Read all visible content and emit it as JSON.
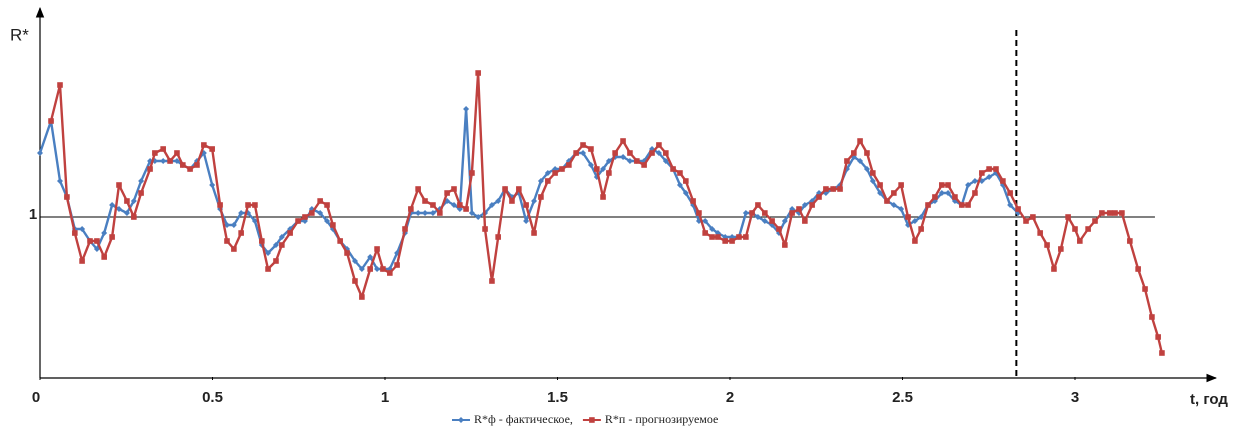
{
  "chart_data": {
    "type": "line",
    "y_label": "R*",
    "x_label": "t, год",
    "xlim": [
      0,
      3.38
    ],
    "ylim": [
      0.6,
      1.5
    ],
    "xticks": [
      0,
      0.5,
      1,
      1.5,
      2,
      2.5,
      3
    ],
    "yticks": [
      1
    ],
    "grid": true,
    "forecast_start": 2.83,
    "legend": "bottom",
    "x": [
      0,
      0.032,
      0.058,
      0.078,
      0.101,
      0.122,
      0.145,
      0.165,
      0.186,
      0.209,
      0.229,
      0.252,
      0.272,
      0.293,
      0.319,
      0.333,
      0.357,
      0.377,
      0.397,
      0.414,
      0.435,
      0.455,
      0.475,
      0.499,
      0.522,
      0.542,
      0.562,
      0.583,
      0.603,
      0.623,
      0.643,
      0.661,
      0.684,
      0.701,
      0.725,
      0.748,
      0.768,
      0.788,
      0.812,
      0.832,
      0.849,
      0.87,
      0.89,
      0.913,
      0.933,
      0.957,
      0.977,
      0.994,
      1.014,
      1.035,
      1.058,
      1.075,
      1.096,
      1.116,
      1.139,
      1.159,
      1.18,
      1.2,
      1.217,
      1.235,
      1.252,
      1.27,
      1.29,
      1.31,
      1.328,
      1.348,
      1.368,
      1.388,
      1.409,
      1.432,
      1.452,
      1.472,
      1.493,
      1.513,
      1.533,
      1.554,
      1.574,
      1.597,
      1.614,
      1.632,
      1.649,
      1.667,
      1.69,
      1.71,
      1.73,
      1.751,
      1.774,
      1.794,
      1.814,
      1.835,
      1.855,
      1.872,
      1.893,
      1.91,
      1.928,
      1.948,
      1.965,
      1.986,
      2.006,
      2.026,
      2.046,
      2.064,
      2.081,
      2.101,
      2.122,
      2.142,
      2.159,
      2.18,
      2.2,
      2.217,
      2.238,
      2.258,
      2.278,
      2.299,
      2.319,
      2.339,
      2.359,
      2.377,
      2.397,
      2.414,
      2.435,
      2.455,
      2.475,
      2.496,
      2.516,
      2.536,
      2.554,
      2.574,
      2.594,
      2.614,
      2.632,
      2.652,
      2.672,
      2.69,
      2.71,
      2.73,
      2.751,
      2.771,
      2.791,
      2.812,
      2.835,
      2.858,
      2.878,
      2.899,
      2.919,
      2.939,
      2.959,
      2.98,
      3.0,
      3.014,
      3.038,
      3.058,
      3.078,
      3.101,
      3.116,
      3.136,
      3.159,
      3.183,
      3.203,
      3.223,
      3.241,
      3.252
    ],
    "series": [
      {
        "name": "R*ф - фактическое,",
        "color": "#4a7fc1",
        "marker": "diamond",
        "values": [
          1.16,
          1.24,
          1.09,
          1.05,
          0.97,
          0.97,
          0.94,
          0.92,
          0.96,
          1.03,
          1.02,
          1.01,
          1.04,
          1.09,
          1.14,
          1.14,
          1.14,
          1.14,
          1.14,
          1.13,
          1.12,
          1.14,
          1.16,
          1.08,
          1.02,
          0.98,
          0.98,
          1.01,
          1.01,
          0.99,
          0.93,
          0.91,
          0.93,
          0.95,
          0.97,
          0.99,
          0.99,
          1.02,
          1.01,
          0.99,
          0.97,
          0.94,
          0.92,
          0.89,
          0.87,
          0.9,
          0.87,
          0.87,
          0.87,
          0.91,
          0.96,
          1.01,
          1.01,
          1.01,
          1.01,
          1.02,
          1.04,
          1.03,
          1.02,
          1.27,
          1.01,
          1.0,
          1.01,
          1.03,
          1.04,
          1.07,
          1.05,
          1.06,
          0.99,
          1.04,
          1.09,
          1.11,
          1.12,
          1.12,
          1.14,
          1.16,
          1.16,
          1.13,
          1.1,
          1.12,
          1.14,
          1.15,
          1.15,
          1.14,
          1.14,
          1.14,
          1.17,
          1.16,
          1.14,
          1.12,
          1.08,
          1.06,
          1.03,
          0.99,
          0.99,
          0.97,
          0.96,
          0.95,
          0.95,
          0.95,
          1.01,
          1.01,
          1.0,
          0.99,
          0.98,
          0.96,
          0.99,
          1.02,
          1.01,
          1.03,
          1.04,
          1.06,
          1.06,
          1.07,
          1.08,
          1.12,
          1.15,
          1.14,
          1.12,
          1.09,
          1.06,
          1.04,
          1.03,
          1.02,
          0.98,
          0.99,
          1.0,
          1.03,
          1.04,
          1.06,
          1.06,
          1.04,
          1.03,
          1.08,
          1.09,
          1.09,
          1.1,
          1.11,
          1.08,
          1.03,
          1.01,
          null,
          null,
          null,
          null,
          null,
          null,
          null,
          null,
          null,
          null,
          null,
          null,
          null,
          null,
          null,
          null,
          null,
          null,
          null,
          null,
          null
        ]
      },
      {
        "name": "R*п - прогнозируемое",
        "color": "#c0413f",
        "marker": "square",
        "values": [
          null,
          1.24,
          1.33,
          1.05,
          0.96,
          0.89,
          0.94,
          0.94,
          0.9,
          0.95,
          1.08,
          1.04,
          1.0,
          1.06,
          1.12,
          1.16,
          1.17,
          1.14,
          1.16,
          1.13,
          1.12,
          1.13,
          1.18,
          1.17,
          1.03,
          0.94,
          0.92,
          0.96,
          1.03,
          1.03,
          0.94,
          0.87,
          0.89,
          0.93,
          0.96,
          0.99,
          1.0,
          1.01,
          1.04,
          1.03,
          0.98,
          0.94,
          0.91,
          0.84,
          0.8,
          0.87,
          0.92,
          0.87,
          0.86,
          0.88,
          0.97,
          1.02,
          1.07,
          1.04,
          1.03,
          1.01,
          1.06,
          1.07,
          1.03,
          1.02,
          1.11,
          1.36,
          0.97,
          0.84,
          0.95,
          1.07,
          1.04,
          1.07,
          1.03,
          0.96,
          1.05,
          1.09,
          1.11,
          1.12,
          1.13,
          1.16,
          1.18,
          1.17,
          1.12,
          1.05,
          1.11,
          1.16,
          1.19,
          1.16,
          1.14,
          1.13,
          1.16,
          1.18,
          1.16,
          1.12,
          1.11,
          1.09,
          1.04,
          1.01,
          0.96,
          0.95,
          0.95,
          0.94,
          0.94,
          0.95,
          0.95,
          1.01,
          1.03,
          1.01,
          0.99,
          0.97,
          0.93,
          1.01,
          1.02,
          0.99,
          1.03,
          1.05,
          1.07,
          1.07,
          1.07,
          1.14,
          1.16,
          1.19,
          1.16,
          1.11,
          1.08,
          1.04,
          1.06,
          1.08,
          1.0,
          0.94,
          0.97,
          1.03,
          1.05,
          1.08,
          1.08,
          1.05,
          1.03,
          1.03,
          1.06,
          1.11,
          1.12,
          1.12,
          1.09,
          1.06,
          1.02,
          0.99,
          1.0,
          0.96,
          0.93,
          0.87,
          0.92,
          1.0,
          0.97,
          0.94,
          0.97,
          0.99,
          1.01,
          1.01,
          1.01,
          1.01,
          0.94,
          0.87,
          0.82,
          0.75,
          0.7,
          0.66
        ]
      }
    ]
  }
}
